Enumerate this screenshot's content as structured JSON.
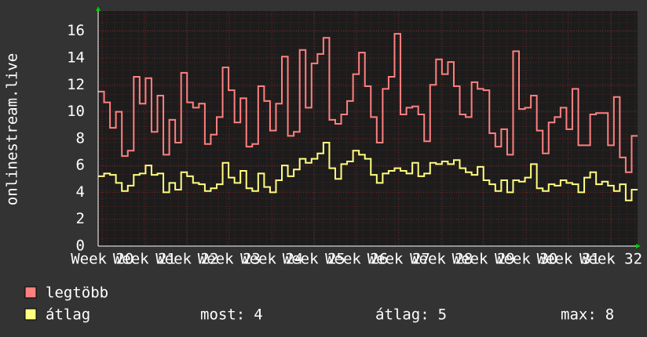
{
  "chart_data": {
    "type": "line",
    "step": true,
    "ylabel": "onlinestream.live",
    "xlim": [
      0,
      91
    ],
    "xticks": [
      {
        "value": 0.7,
        "label": "Week 20"
      },
      {
        "value": 7.8,
        "label": "Week 21"
      },
      {
        "value": 15,
        "label": "Week 22"
      },
      {
        "value": 22.1,
        "label": "Week 23"
      },
      {
        "value": 29.3,
        "label": "Week 24"
      },
      {
        "value": 36.4,
        "label": "Week 25"
      },
      {
        "value": 43.6,
        "label": "Week 26"
      },
      {
        "value": 50.7,
        "label": "Week 27"
      },
      {
        "value": 57.9,
        "label": "Week 28"
      },
      {
        "value": 65,
        "label": "Week 29"
      },
      {
        "value": 72.2,
        "label": "Week 30"
      },
      {
        "value": 79.3,
        "label": "Week 31"
      },
      {
        "value": 86.5,
        "label": "Week 32"
      }
    ],
    "ylim": [
      0,
      17.5
    ],
    "yticks": [
      0,
      2,
      4,
      6,
      8,
      10,
      12,
      14,
      16
    ],
    "grid": true,
    "series": [
      {
        "name": "legtöbb",
        "color": "#ff8080",
        "values": [
          11.5,
          10.7,
          8.8,
          10,
          6.7,
          7.1,
          12.6,
          10.6,
          12.5,
          8.5,
          11.2,
          6.8,
          9.4,
          7.7,
          12.9,
          10.7,
          10.3,
          10.6,
          7.6,
          8.3,
          9.6,
          13.3,
          11.6,
          9.2,
          11,
          7.4,
          7.6,
          11.9,
          10.8,
          8.6,
          10.6,
          14.1,
          8.2,
          8.5,
          14.6,
          10.3,
          13.6,
          14.3,
          15.5,
          9.4,
          9.1,
          9.8,
          10.8,
          12.8,
          14.4,
          11.9,
          9.6,
          7.7,
          11.7,
          12.6,
          15.8,
          9.8,
          10.3,
          10.4,
          9.8,
          7.8,
          12,
          13.9,
          12.8,
          13.7,
          11.9,
          9.8,
          9.6,
          12.2,
          11.7,
          11.6,
          8.4,
          7.4,
          8.7,
          6.8,
          14.5,
          10.2,
          10.3,
          11.2,
          8.6,
          6.9,
          9.2,
          9.6,
          10.3,
          8.7,
          11.7,
          7.5,
          7.5,
          9.8,
          9.9,
          9.9,
          7.5,
          11.1,
          6.6,
          5.5,
          8.2
        ]
      },
      {
        "name": "átlag",
        "color": "#ffff80",
        "values": [
          5.2,
          5.4,
          5.3,
          4.7,
          4.1,
          4.5,
          5.3,
          5.4,
          6,
          5.3,
          5.4,
          4,
          4.7,
          4.2,
          5.5,
          5.2,
          4.7,
          4.6,
          4.1,
          4.3,
          4.6,
          6.2,
          5.1,
          4.7,
          5.6,
          4.3,
          4.1,
          5.4,
          4.4,
          4.0,
          4.9,
          6.0,
          5.2,
          5.7,
          6.5,
          6.2,
          6.5,
          6.9,
          7.7,
          5.8,
          5,
          6.1,
          6.3,
          7.1,
          6.8,
          6.5,
          5.3,
          4.7,
          5.4,
          5.6,
          5.8,
          5.6,
          5.4,
          6.2,
          5.2,
          5.4,
          6.2,
          6.1,
          6.3,
          6.1,
          6.4,
          5.8,
          5.5,
          5.3,
          5.9,
          4.9,
          4.6,
          4.1,
          4.9,
          4.0,
          4.9,
          4.8,
          5.1,
          6.1,
          4.3,
          4.1,
          4.6,
          4.5,
          4.9,
          4.7,
          4.6,
          4,
          5.1,
          5.5,
          4.6,
          4.8,
          4.5,
          4.1,
          4.6,
          3.4,
          4.2
        ]
      }
    ],
    "stats": [
      {
        "label": "most:",
        "value": 4
      },
      {
        "label": "átlag:",
        "value": 5
      },
      {
        "label": "max:",
        "value": 8
      }
    ]
  }
}
